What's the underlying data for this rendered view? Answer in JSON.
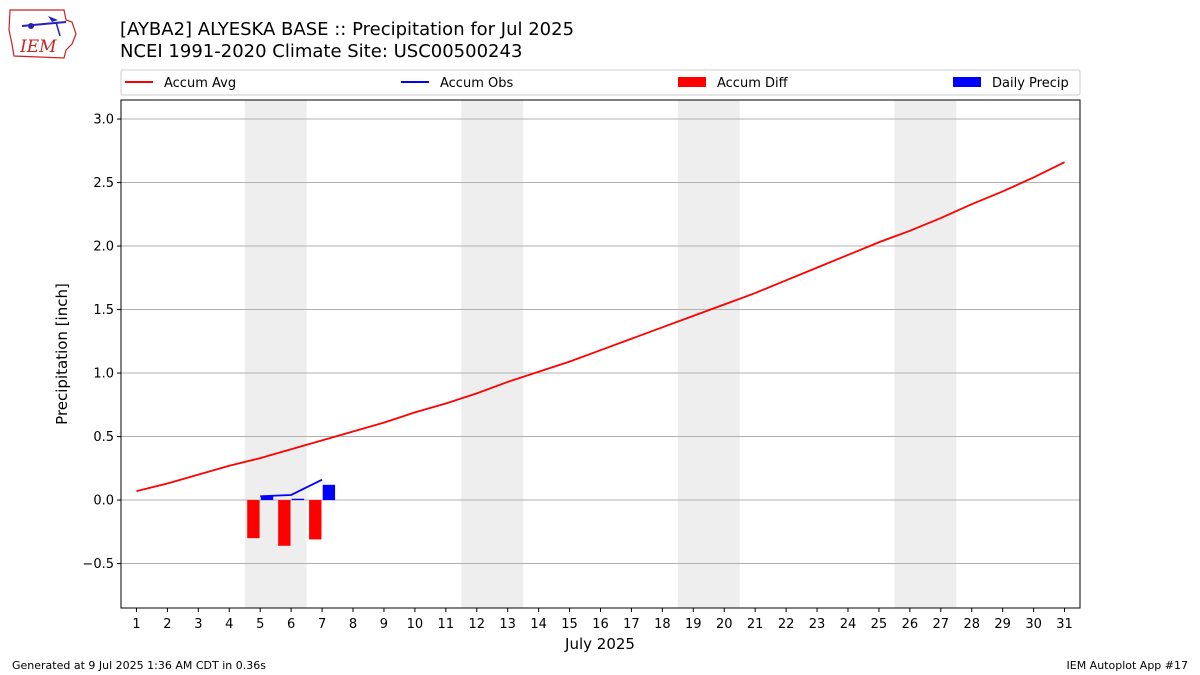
{
  "chart_data": {
    "type": "line",
    "title": "[AYBA2] ALYESKA BASE :: Precipitation for Jul 2025",
    "subtitle": "NCEI 1991-2020 Climate Site: USC00500243",
    "xlabel": "July 2025",
    "ylabel": "Precipitation [inch]",
    "xlim": [
      0.5,
      31.5
    ],
    "ylim": [
      -0.85,
      3.15
    ],
    "yticks": [
      -0.5,
      0.0,
      0.5,
      1.0,
      1.5,
      2.0,
      2.5,
      3.0
    ],
    "ytick_labels": [
      "−0.5",
      "0.0",
      "0.5",
      "1.0",
      "1.5",
      "2.0",
      "2.5",
      "3.0"
    ],
    "x": [
      1,
      2,
      3,
      4,
      5,
      6,
      7,
      8,
      9,
      10,
      11,
      12,
      13,
      14,
      15,
      16,
      17,
      18,
      19,
      20,
      21,
      22,
      23,
      24,
      25,
      26,
      27,
      28,
      29,
      30,
      31
    ],
    "x_tick_labels": [
      "1",
      "2",
      "3",
      "4",
      "5",
      "6",
      "7",
      "8",
      "9",
      "10",
      "11",
      "12",
      "13",
      "14",
      "15",
      "16",
      "17",
      "18",
      "19",
      "20",
      "21",
      "22",
      "23",
      "24",
      "25",
      "26",
      "27",
      "28",
      "29",
      "30",
      "31"
    ],
    "grid": "y",
    "legend_position": "top",
    "weekend_shading": [
      [
        4.5,
        6.5
      ],
      [
        11.5,
        13.5
      ],
      [
        18.5,
        20.5
      ],
      [
        25.5,
        27.5
      ]
    ],
    "series": [
      {
        "name": "Accum Avg",
        "type": "line",
        "color": "#ff0000",
        "x": [
          1,
          2,
          3,
          4,
          5,
          6,
          7,
          8,
          9,
          10,
          11,
          12,
          13,
          14,
          15,
          16,
          17,
          18,
          19,
          20,
          21,
          22,
          23,
          24,
          25,
          26,
          27,
          28,
          29,
          30,
          31
        ],
        "values": [
          0.07,
          0.13,
          0.2,
          0.27,
          0.33,
          0.4,
          0.47,
          0.54,
          0.61,
          0.69,
          0.76,
          0.84,
          0.93,
          1.01,
          1.09,
          1.18,
          1.27,
          1.36,
          1.45,
          1.54,
          1.63,
          1.73,
          1.83,
          1.93,
          2.03,
          2.12,
          2.22,
          2.33,
          2.43,
          2.54,
          2.66
        ]
      },
      {
        "name": "Accum Obs",
        "type": "line",
        "color": "#0000ff",
        "x": [
          5,
          6,
          7
        ],
        "values": [
          0.03,
          0.04,
          0.16
        ]
      },
      {
        "name": "Accum Diff",
        "type": "bar",
        "color": "#ff0000",
        "x": [
          5,
          6,
          7
        ],
        "values": [
          -0.3,
          -0.36,
          -0.31
        ]
      },
      {
        "name": "Daily Precip",
        "type": "bar",
        "color": "#0000ff",
        "x": [
          5,
          6,
          7
        ],
        "values": [
          0.03,
          0.01,
          0.12
        ]
      }
    ]
  },
  "footer": {
    "left": "Generated at 9 Jul 2025 1:36 AM CDT in 0.36s",
    "right": "IEM Autoplot App #17"
  },
  "logo": {
    "text": "IEM",
    "color": "#cc2222"
  }
}
